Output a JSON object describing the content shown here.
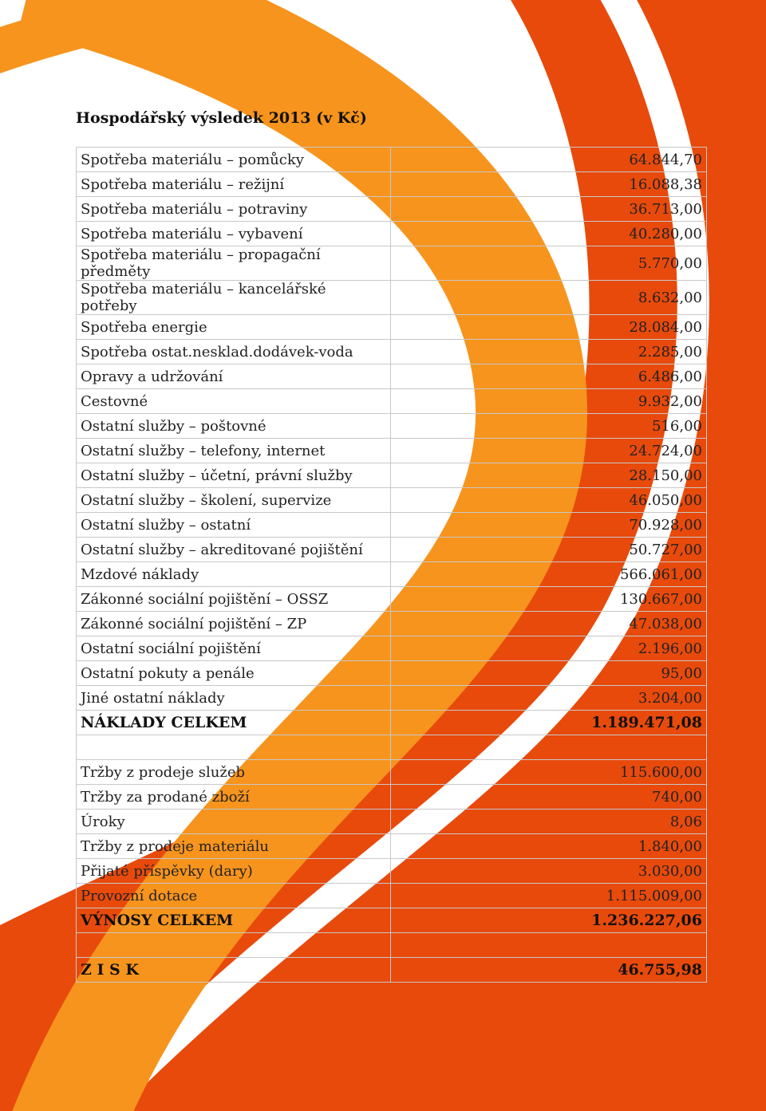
{
  "title": "Hospodářský výsledek 2013 (v Kč)",
  "table": {
    "sections": [
      {
        "rows": [
          [
            "Spotřeba materiálu – pomůcky",
            "64.844,70"
          ],
          [
            "Spotřeba materiálu – režijní",
            "16.088,38"
          ],
          [
            "Spotřeba materiálu – potraviny",
            "36.713,00"
          ],
          [
            "Spotřeba materiálu – vybavení",
            "40.280,00"
          ],
          [
            "Spotřeba materiálu – propagační předměty",
            "5.770,00"
          ],
          [
            "Spotřeba materiálu – kancelářské potřeby",
            "8.632,00"
          ],
          [
            "Spotřeba energie",
            "28.084,00"
          ],
          [
            "Spotřeba ostat.nesklad.dodávek-voda",
            "2.285,00"
          ],
          [
            "Opravy a udržování",
            "6.486,00"
          ],
          [
            "Cestovné",
            "9.932,00"
          ],
          [
            "Ostatní služby – poštovné",
            "516,00"
          ],
          [
            "Ostatní služby – telefony, internet",
            "24.724,00"
          ],
          [
            "Ostatní služby – účetní, právní služby",
            "28.150,00"
          ],
          [
            "Ostatní služby – školení, supervize",
            "46.050,00"
          ],
          [
            "Ostatní služby – ostatní",
            "70.928,00"
          ],
          [
            "Ostatní služby – akreditované pojištění",
            "50.727,00"
          ],
          [
            "Mzdové náklady",
            "566.061,00"
          ],
          [
            "Zákonné sociální pojištění – OSSZ",
            "130.667,00"
          ],
          [
            "Zákonné sociální pojištění – ZP",
            "47.038,00"
          ],
          [
            "Ostatní sociální pojištění",
            "2.196,00"
          ],
          [
            "Ostatní pokuty a penále",
            "95,00"
          ],
          [
            "Jiné ostatní náklady",
            "3.204,00"
          ]
        ],
        "total": [
          "NÁKLADY CELKEM",
          "1.189.471,08"
        ]
      },
      {
        "rows": [
          [
            "Tržby z prodeje služeb",
            "115.600,00"
          ],
          [
            "Tržby za prodané zboží",
            "740,00"
          ],
          [
            "Úroky",
            "8,06"
          ],
          [
            "Tržby z prodeje materiálu",
            "1.840,00"
          ],
          [
            "Přijaté příspěvky (dary)",
            "3.030,00"
          ],
          [
            "Provozní dotace",
            "1.115.009,00"
          ]
        ],
        "total": [
          "VÝNOSY CELKEM",
          "1.236.227,06"
        ]
      },
      {
        "rows": [],
        "total": [
          "Z I S K",
          "46.755,98"
        ]
      }
    ]
  }
}
